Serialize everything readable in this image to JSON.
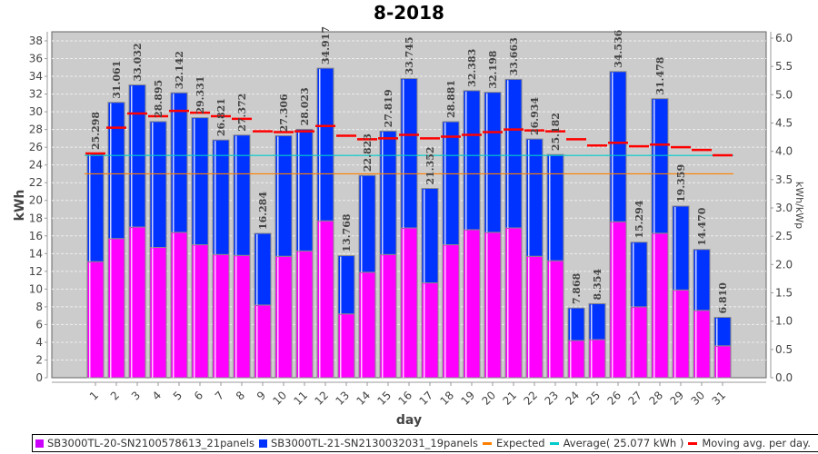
{
  "chart_data": {
    "type": "bar",
    "stacked": true,
    "title": "8-2018",
    "xlabel": "day",
    "ylabel": "kWh",
    "ylabel_right": "kWh/kWp",
    "ylim": [
      0,
      38
    ],
    "ylim_right": [
      0.0,
      6.0
    ],
    "yticks": [
      "0",
      "2",
      "4",
      "6",
      "8",
      "10",
      "12",
      "14",
      "16",
      "18",
      "20",
      "22",
      "24",
      "26",
      "28",
      "30",
      "32",
      "34",
      "36",
      "38"
    ],
    "yticks_right": [
      "0.0",
      "0.5",
      "1.0",
      "1.5",
      "2.0",
      "2.5",
      "3.0",
      "3.5",
      "4.0",
      "4.5",
      "5.0",
      "5.5",
      "6.0"
    ],
    "grid": true,
    "legend_position": "bottom",
    "categories": [
      "1",
      "2",
      "3",
      "4",
      "5",
      "6",
      "7",
      "8",
      "9",
      "10",
      "11",
      "12",
      "13",
      "14",
      "15",
      "16",
      "17",
      "18",
      "19",
      "20",
      "21",
      "22",
      "23",
      "24",
      "25",
      "26",
      "27",
      "28",
      "29",
      "30",
      "31"
    ],
    "totals_labels": [
      "25.298",
      "31.061",
      "33.032",
      "28.895",
      "32.142",
      "29.331",
      "26.821",
      "27.372",
      "16.284",
      "27.306",
      "28.023",
      "34.917",
      "13.768",
      "22.823",
      "27.819",
      "33.745",
      "21.352",
      "28.881",
      "32.383",
      "32.198",
      "33.663",
      "26.934",
      "25.182",
      "7.868",
      "8.354",
      "34.536",
      "15.294",
      "31.478",
      "19.359",
      "14.470",
      "6.810"
    ],
    "series": [
      {
        "name": "SB3000TL-20-SN2100578613_21panels",
        "color": "#ff00ff",
        "values": [
          13.1,
          15.7,
          17.0,
          14.7,
          16.4,
          15.0,
          13.9,
          13.8,
          8.2,
          13.7,
          14.3,
          17.7,
          7.2,
          11.9,
          13.9,
          16.9,
          10.7,
          15.0,
          16.7,
          16.4,
          16.9,
          13.7,
          13.2,
          4.2,
          4.3,
          17.6,
          8.0,
          16.3,
          9.9,
          7.6,
          3.6
        ]
      },
      {
        "name": "SB3000TL-21-SN2130032031_19panels",
        "color": "#0033ff",
        "values": [
          12.198,
          15.361,
          16.032,
          14.195,
          15.742,
          14.331,
          12.921,
          13.572,
          8.084,
          13.606,
          13.723,
          17.217,
          6.568,
          10.923,
          13.919,
          16.845,
          10.652,
          13.881,
          15.683,
          15.798,
          16.763,
          13.234,
          11.982,
          3.668,
          4.054,
          16.936,
          7.294,
          15.178,
          9.459,
          6.87,
          3.21
        ]
      }
    ],
    "lines": [
      {
        "name": "Expected",
        "color": "#ff8000",
        "style": "dashed",
        "value": 23.0
      },
      {
        "name": "Average( 25.077 kWh )",
        "color": "#00cccc",
        "style": "dashed",
        "value": 25.077
      },
      {
        "name": "Moving avg. per day.",
        "color": "#ff0000",
        "style": "segments",
        "values": [
          25.3,
          28.2,
          29.8,
          29.5,
          30.1,
          29.9,
          29.5,
          29.2,
          27.8,
          27.7,
          27.8,
          28.4,
          27.3,
          26.9,
          27.0,
          27.4,
          27.0,
          27.2,
          27.4,
          27.7,
          28.0,
          27.9,
          27.8,
          26.9,
          26.2,
          26.5,
          26.1,
          26.3,
          26.0,
          25.7,
          25.1
        ]
      }
    ]
  },
  "legend": {
    "items": [
      {
        "label": "SB3000TL-20-SN2100578613_21panels",
        "color": "#cc00ff",
        "kind": "box"
      },
      {
        "label": "SB3000TL-21-SN2130032031_19panels",
        "color": "#0033ff",
        "kind": "box"
      },
      {
        "label": "Expected",
        "color": "#ff8000",
        "kind": "line"
      },
      {
        "label": "Average( 25.077 kWh )",
        "color": "#00cccc",
        "kind": "line"
      },
      {
        "label": "Moving avg. per day.",
        "color": "#ff0000",
        "kind": "line"
      }
    ]
  }
}
